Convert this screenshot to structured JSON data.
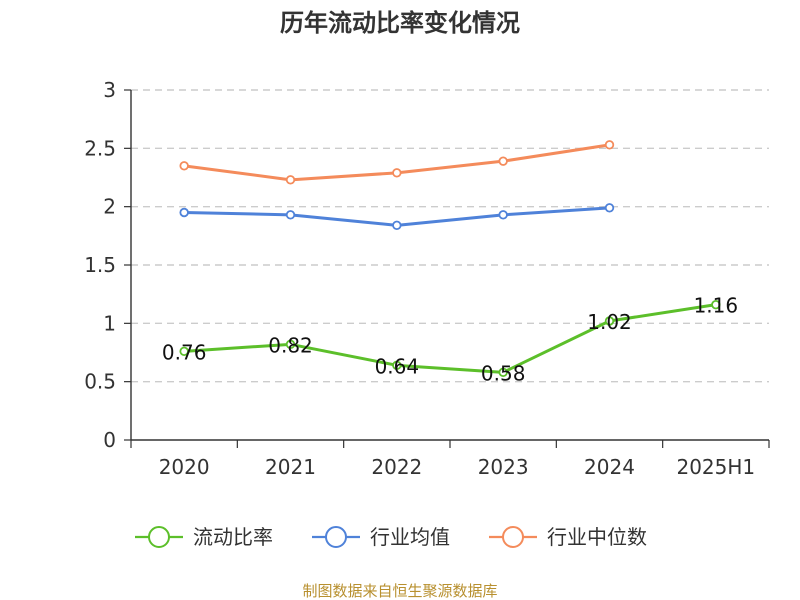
{
  "chart_data": {
    "type": "line",
    "title": "历年流动比率变化情况",
    "categories": [
      "2020",
      "2021",
      "2022",
      "2023",
      "2024",
      "2025H1"
    ],
    "ylim": [
      0,
      3
    ],
    "yticks": [
      "0",
      "0.5",
      "1",
      "1.5",
      "2",
      "2.5",
      "3"
    ],
    "grid": "horizontal dashed",
    "legend_position": "bottom",
    "series": [
      {
        "name": "流动比率",
        "color": "#5cbf2a",
        "values": [
          0.76,
          0.82,
          0.64,
          0.58,
          1.02,
          1.16
        ],
        "labels": [
          "0.76",
          "0.82",
          "0.64",
          "0.58",
          "1.02",
          "1.16"
        ]
      },
      {
        "name": "行业均值",
        "color": "#4f82d9",
        "values": [
          1.95,
          1.93,
          1.84,
          1.93,
          1.99,
          null
        ]
      },
      {
        "name": "行业中位数",
        "color": "#f48b5b",
        "values": [
          2.35,
          2.23,
          2.29,
          2.39,
          2.53,
          null
        ]
      }
    ]
  },
  "source": "制图数据来自恒生聚源数据库"
}
